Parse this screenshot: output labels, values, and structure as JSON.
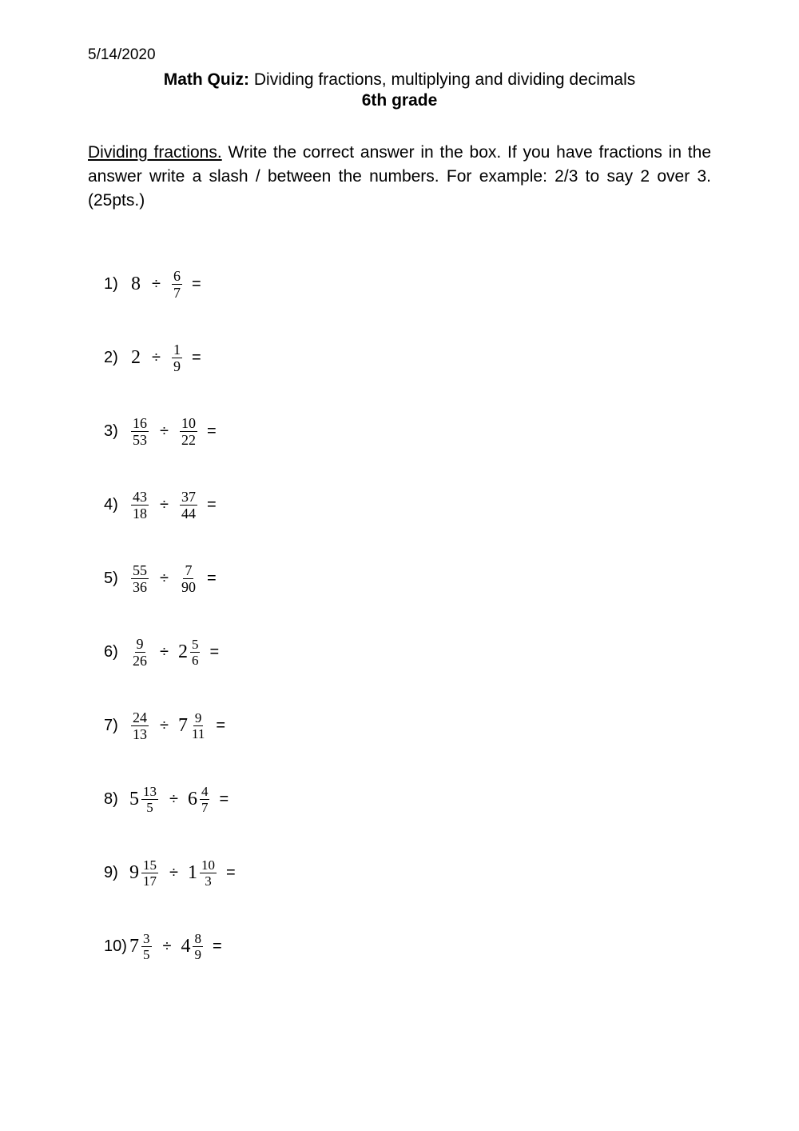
{
  "date": "5/14/2020",
  "title_bold": "Math Quiz:",
  "title_rest": " Dividing fractions, multiplying and dividing decimals",
  "grade": "6th grade",
  "section_label": "Dividing fractions.",
  "instructions_rest": " Write the correct answer in the box. If you have fractions in the answer write a slash / between the numbers. For example: 2/3 to say 2 over 3. (25pts.)",
  "divide_symbol": "÷",
  "equals_symbol": "=",
  "problems": [
    {
      "n": "1)",
      "left": {
        "type": "int",
        "v": "8"
      },
      "right": {
        "type": "frac",
        "num": "6",
        "den": "7"
      }
    },
    {
      "n": "2)",
      "left": {
        "type": "int",
        "v": "2"
      },
      "right": {
        "type": "frac",
        "num": "1",
        "den": "9"
      }
    },
    {
      "n": "3)",
      "left": {
        "type": "frac",
        "num": "16",
        "den": "53"
      },
      "right": {
        "type": "frac",
        "num": "10",
        "den": "22"
      }
    },
    {
      "n": "4)",
      "left": {
        "type": "frac",
        "num": "43",
        "den": "18"
      },
      "right": {
        "type": "frac",
        "num": "37",
        "den": "44"
      }
    },
    {
      "n": "5)",
      "left": {
        "type": "frac",
        "num": "55",
        "den": "36"
      },
      "right": {
        "type": "frac",
        "num": "7",
        "den": "90"
      }
    },
    {
      "n": "6)",
      "left": {
        "type": "frac",
        "num": "9",
        "den": "26"
      },
      "right": {
        "type": "mixed",
        "whole": "2",
        "num": "5",
        "den": "6"
      }
    },
    {
      "n": "7)",
      "left": {
        "type": "frac",
        "num": "24",
        "den": "13"
      },
      "right": {
        "type": "mixed",
        "whole": "7",
        "num": "9",
        "den": "11"
      }
    },
    {
      "n": "8)",
      "left": {
        "type": "mixed",
        "whole": "5",
        "num": "13",
        "den": "5"
      },
      "right": {
        "type": "mixed",
        "whole": "6",
        "num": "4",
        "den": "7"
      }
    },
    {
      "n": "9)",
      "left": {
        "type": "mixed",
        "whole": "9",
        "num": "15",
        "den": "17"
      },
      "right": {
        "type": "mixed",
        "whole": "1",
        "num": "10",
        "den": "3"
      }
    },
    {
      "n": "10)",
      "left": {
        "type": "mixed",
        "whole": "7",
        "num": "3",
        "den": "5"
      },
      "right": {
        "type": "mixed",
        "whole": "4",
        "num": "8",
        "den": "9"
      }
    }
  ],
  "colors": {
    "text": "#000000",
    "background": "#ffffff"
  },
  "typography": {
    "body_family": "Arial",
    "math_family": "Times New Roman",
    "body_size_pt": 16,
    "math_size_pt": 18
  }
}
